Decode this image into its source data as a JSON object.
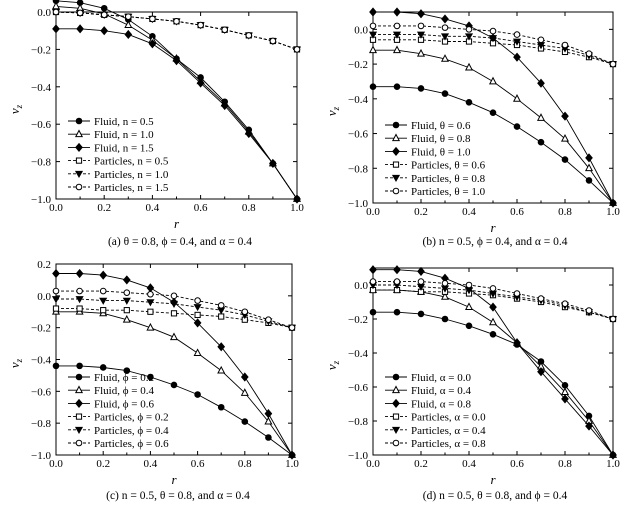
{
  "chart_data": [
    {
      "type": "line",
      "xlabel": "r",
      "ylabel": "v_z",
      "xlim": [
        0.0,
        1.0
      ],
      "ylim": [
        -1.0,
        0.0
      ],
      "xticks": [
        "0.0",
        "0.2",
        "0.4",
        "0.6",
        "0.8",
        "1.0"
      ],
      "yticks": [
        "0.0",
        "-0.2",
        "-0.4",
        "-0.6",
        "-0.8",
        "-1.0"
      ],
      "caption": "(a) θ = 0.8, ϕ = 0.4, and α = 0.4",
      "legend_position": "bottom-left",
      "x": [
        0.0,
        0.1,
        0.2,
        0.3,
        0.4,
        0.5,
        0.6,
        0.7,
        0.8,
        0.9,
        1.0
      ],
      "series": [
        {
          "name": "Fluid, n = 0.5",
          "style": "solid",
          "marker": "filled-circle",
          "values": [
            0.06,
            0.05,
            0.02,
            -0.04,
            -0.13,
            -0.25,
            -0.35,
            -0.48,
            -0.63,
            -0.81,
            -1.0
          ]
        },
        {
          "name": "Fluid, n = 1.0",
          "style": "solid",
          "marker": "open-triangle",
          "values": [
            0.03,
            0.02,
            -0.01,
            -0.07,
            -0.15,
            -0.25,
            -0.37,
            -0.49,
            -0.64,
            -0.81,
            -1.0
          ]
        },
        {
          "name": "Fluid, n = 1.5",
          "style": "solid",
          "marker": "filled-diamond",
          "values": [
            -0.09,
            -0.09,
            -0.1,
            -0.12,
            -0.17,
            -0.26,
            -0.38,
            -0.5,
            -0.65,
            -0.81,
            -1.0
          ]
        },
        {
          "name": "Particles, n = 0.5",
          "style": "dashed",
          "marker": "open-square",
          "values": [
            0.0,
            -0.005,
            -0.015,
            -0.025,
            -0.037,
            -0.05,
            -0.07,
            -0.095,
            -0.125,
            -0.155,
            -0.2
          ]
        },
        {
          "name": "Particles, n = 1.0",
          "style": "dashed",
          "marker": "filled-down-triangle",
          "values": [
            0.0,
            -0.005,
            -0.015,
            -0.025,
            -0.037,
            -0.05,
            -0.07,
            -0.095,
            -0.125,
            -0.155,
            -0.2
          ]
        },
        {
          "name": "Particles, n = 1.5",
          "style": "dashed",
          "marker": "open-circle",
          "values": [
            0.0,
            -0.005,
            -0.015,
            -0.025,
            -0.037,
            -0.05,
            -0.07,
            -0.095,
            -0.125,
            -0.155,
            -0.2
          ]
        }
      ]
    },
    {
      "type": "line",
      "xlabel": "r",
      "ylabel": "v_z",
      "xlim": [
        0.0,
        1.0
      ],
      "ylim": [
        -1.0,
        0.1
      ],
      "xticks": [
        "0.0",
        "0.2",
        "0.4",
        "0.6",
        "0.8",
        "1.0"
      ],
      "yticks": [
        "0.0",
        "-0.2",
        "-0.4",
        "-0.6",
        "-0.8",
        "-1.0"
      ],
      "caption": "(b) n = 0.5, ϕ = 0.4, and α = 0.4",
      "legend_position": "bottom-left",
      "x": [
        0.0,
        0.1,
        0.2,
        0.3,
        0.4,
        0.5,
        0.6,
        0.7,
        0.8,
        0.9,
        1.0
      ],
      "series": [
        {
          "name": "Fluid, θ = 0.6",
          "style": "solid",
          "marker": "filled-circle",
          "values": [
            -0.33,
            -0.33,
            -0.34,
            -0.37,
            -0.42,
            -0.48,
            -0.56,
            -0.65,
            -0.75,
            -0.87,
            -1.0
          ]
        },
        {
          "name": "Fluid, θ = 0.8",
          "style": "solid",
          "marker": "open-triangle",
          "values": [
            -0.12,
            -0.12,
            -0.14,
            -0.17,
            -0.22,
            -0.3,
            -0.4,
            -0.51,
            -0.63,
            -0.8,
            -1.0
          ]
        },
        {
          "name": "Fluid, θ = 1.0",
          "style": "solid",
          "marker": "filled-diamond",
          "values": [
            0.1,
            0.1,
            0.09,
            0.06,
            0.02,
            -0.05,
            -0.16,
            -0.31,
            -0.5,
            -0.74,
            -1.0
          ]
        },
        {
          "name": "Particles, θ = 0.6",
          "style": "dashed",
          "marker": "open-square",
          "values": [
            -0.06,
            -0.06,
            -0.06,
            -0.07,
            -0.07,
            -0.08,
            -0.09,
            -0.11,
            -0.13,
            -0.16,
            -0.2
          ]
        },
        {
          "name": "Particles, θ = 0.8",
          "style": "dashed",
          "marker": "filled-down-triangle",
          "values": [
            -0.03,
            -0.03,
            -0.03,
            -0.04,
            -0.04,
            -0.05,
            -0.07,
            -0.09,
            -0.11,
            -0.15,
            -0.2
          ]
        },
        {
          "name": "Particles, θ = 1.0",
          "style": "dashed",
          "marker": "open-circle",
          "values": [
            0.02,
            0.02,
            0.02,
            0.01,
            0.0,
            -0.01,
            -0.03,
            -0.06,
            -0.09,
            -0.14,
            -0.2
          ]
        }
      ]
    },
    {
      "type": "line",
      "xlabel": "r",
      "ylabel": "v_z",
      "xlim": [
        0.0,
        1.0
      ],
      "ylim": [
        -1.0,
        0.2
      ],
      "xticks": [
        "0.0",
        "0.2",
        "0.4",
        "0.6",
        "0.8",
        "1.0"
      ],
      "yticks": [
        "0.2",
        "0.0",
        "-0.2",
        "-0.4",
        "-0.6",
        "-0.8",
        "-1.0"
      ],
      "caption": "(c) n = 0.5, θ = 0.8, and α = 0.4",
      "legend_position": "bottom-left",
      "x": [
        0.0,
        0.1,
        0.2,
        0.3,
        0.4,
        0.5,
        0.6,
        0.7,
        0.8,
        0.9,
        1.0
      ],
      "series": [
        {
          "name": "Fluid, ϕ = 0.2",
          "style": "solid",
          "marker": "filled-circle",
          "values": [
            -0.44,
            -0.44,
            -0.45,
            -0.47,
            -0.51,
            -0.56,
            -0.62,
            -0.7,
            -0.79,
            -0.89,
            -1.0
          ]
        },
        {
          "name": "Fluid, ϕ = 0.4",
          "style": "solid",
          "marker": "open-triangle",
          "values": [
            -0.1,
            -0.1,
            -0.11,
            -0.15,
            -0.2,
            -0.26,
            -0.36,
            -0.47,
            -0.61,
            -0.79,
            -1.0
          ]
        },
        {
          "name": "Fluid, ϕ = 0.6",
          "style": "solid",
          "marker": "filled-diamond",
          "values": [
            0.14,
            0.14,
            0.13,
            0.1,
            0.05,
            -0.04,
            -0.17,
            -0.32,
            -0.51,
            -0.74,
            -1.0
          ]
        },
        {
          "name": "Particles, ϕ = 0.2",
          "style": "dashed",
          "marker": "open-square",
          "values": [
            -0.08,
            -0.08,
            -0.09,
            -0.09,
            -0.1,
            -0.11,
            -0.12,
            -0.13,
            -0.15,
            -0.17,
            -0.2
          ]
        },
        {
          "name": "Particles, ϕ = 0.4",
          "style": "dashed",
          "marker": "filled-down-triangle",
          "values": [
            -0.02,
            -0.02,
            -0.03,
            -0.03,
            -0.04,
            -0.05,
            -0.07,
            -0.09,
            -0.12,
            -0.16,
            -0.2
          ]
        },
        {
          "name": "Particles, ϕ = 0.6",
          "style": "dashed",
          "marker": "open-circle",
          "values": [
            0.03,
            0.03,
            0.03,
            0.02,
            0.01,
            0.0,
            -0.03,
            -0.06,
            -0.1,
            -0.15,
            -0.2
          ]
        }
      ]
    },
    {
      "type": "line",
      "xlabel": "r",
      "ylabel": "v_z",
      "xlim": [
        0.0,
        1.0
      ],
      "ylim": [
        -1.0,
        0.1
      ],
      "xticks": [
        "0.0",
        "0.2",
        "0.4",
        "0.6",
        "0.8",
        "1.0"
      ],
      "yticks": [
        "0.0",
        "-0.2",
        "-0.4",
        "-0.6",
        "-0.8",
        "-1.0"
      ],
      "caption": "(d) n = 0.5, θ = 0.8, and ϕ = 0.4",
      "legend_position": "bottom-left",
      "x": [
        0.0,
        0.1,
        0.2,
        0.3,
        0.4,
        0.5,
        0.6,
        0.7,
        0.8,
        0.9,
        1.0
      ],
      "series": [
        {
          "name": "Fluid, α = 0.0",
          "style": "solid",
          "marker": "filled-circle",
          "values": [
            -0.16,
            -0.16,
            -0.17,
            -0.2,
            -0.24,
            -0.29,
            -0.35,
            -0.45,
            -0.59,
            -0.77,
            -1.0
          ]
        },
        {
          "name": "Fluid, α = 0.4",
          "style": "solid",
          "marker": "open-triangle",
          "values": [
            -0.03,
            -0.03,
            -0.04,
            -0.07,
            -0.13,
            -0.22,
            -0.34,
            -0.48,
            -0.63,
            -0.8,
            -1.0
          ]
        },
        {
          "name": "Fluid, α = 0.8",
          "style": "solid",
          "marker": "filled-diamond",
          "values": [
            0.09,
            0.09,
            0.08,
            0.04,
            -0.02,
            -0.13,
            -0.34,
            -0.51,
            -0.67,
            -0.83,
            -1.0
          ]
        },
        {
          "name": "Particles, α = 0.0",
          "style": "dashed",
          "marker": "open-square",
          "values": [
            -0.03,
            -0.03,
            -0.04,
            -0.04,
            -0.05,
            -0.06,
            -0.08,
            -0.1,
            -0.13,
            -0.16,
            -0.2
          ]
        },
        {
          "name": "Particles, α = 0.4",
          "style": "dashed",
          "marker": "filled-down-triangle",
          "values": [
            0.0,
            0.0,
            -0.01,
            -0.02,
            -0.03,
            -0.05,
            -0.07,
            -0.09,
            -0.12,
            -0.16,
            -0.2
          ]
        },
        {
          "name": "Particles, α = 0.8",
          "style": "dashed",
          "marker": "open-circle",
          "values": [
            0.02,
            0.02,
            0.02,
            0.01,
            0.0,
            -0.02,
            -0.05,
            -0.08,
            -0.11,
            -0.15,
            -0.2
          ]
        }
      ]
    }
  ]
}
